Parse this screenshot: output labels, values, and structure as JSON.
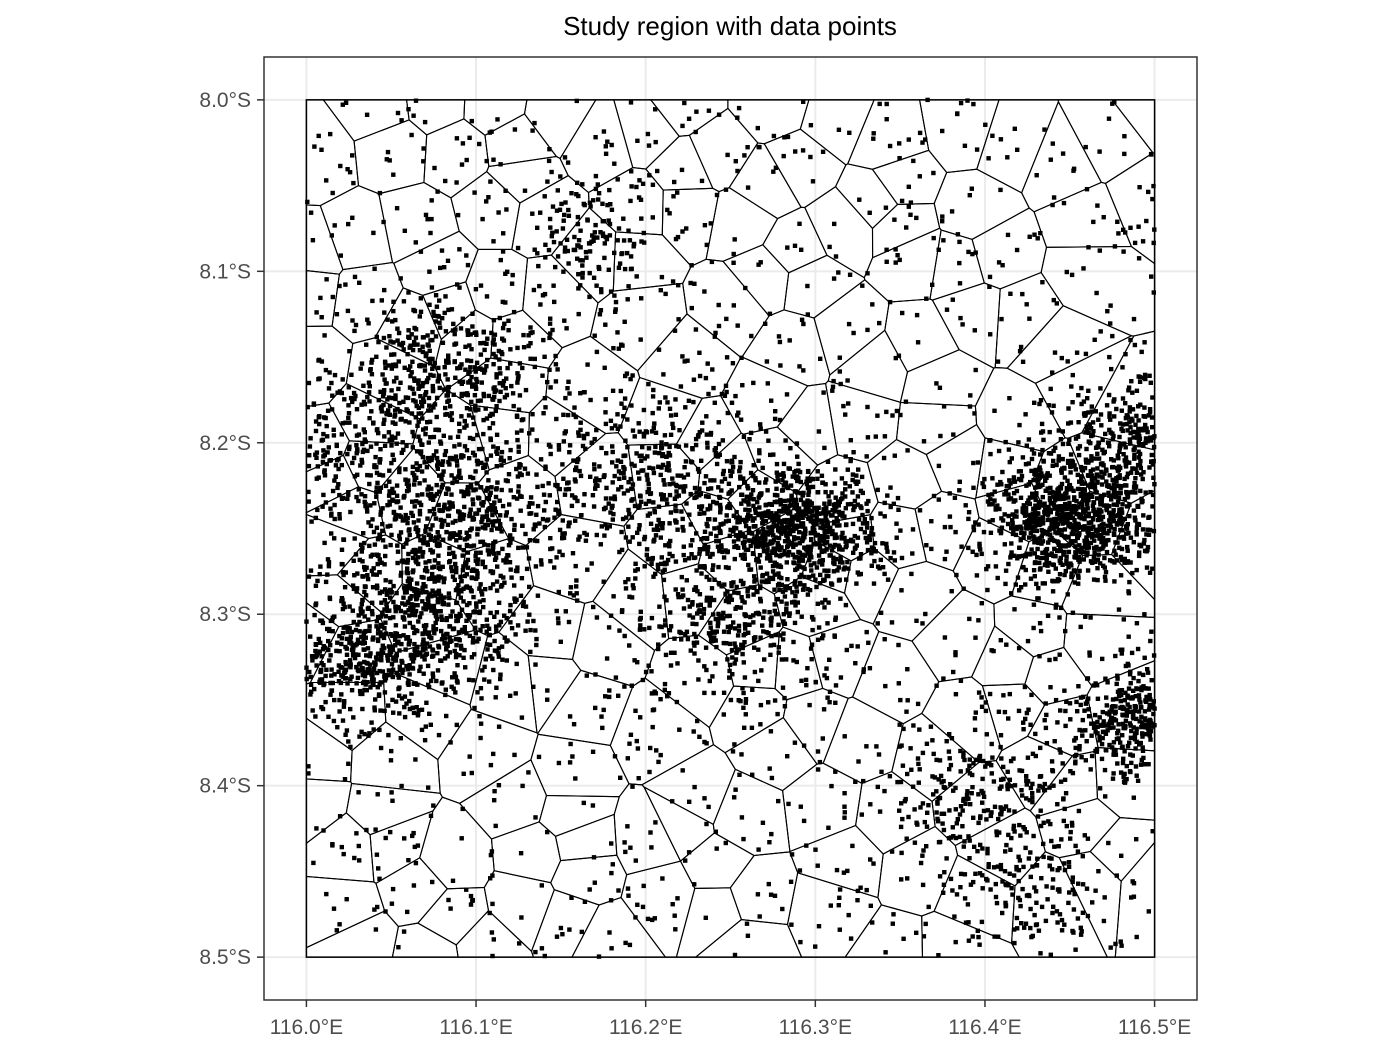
{
  "chart_data": {
    "type": "scatter",
    "title": "Study region with data points",
    "xlabel": "",
    "ylabel": "",
    "xlim": [
      115.975,
      116.525
    ],
    "ylim": [
      -8.525,
      -7.975
    ],
    "x_ticks": [
      116.0,
      116.1,
      116.2,
      116.3,
      116.4,
      116.5
    ],
    "x_tick_labels": [
      "116.0°E",
      "116.1°E",
      "116.2°E",
      "116.3°E",
      "116.4°E",
      "116.5°E"
    ],
    "y_ticks": [
      -8.0,
      -8.1,
      -8.2,
      -8.3,
      -8.4,
      -8.5
    ],
    "y_tick_labels": [
      "8.0°S",
      "8.1°S",
      "8.2°S",
      "8.3°S",
      "8.4°S",
      "8.5°S"
    ],
    "grid": true,
    "study_region": {
      "lon": [
        116.0,
        116.5
      ],
      "lat": [
        -8.5,
        -8.0
      ]
    },
    "overlay": "voronoi tessellation of study region",
    "point_density_clusters": [
      {
        "lon": 116.29,
        "lat": -8.25,
        "weight": 6
      },
      {
        "lon": 116.45,
        "lat": -8.245,
        "weight": 7
      },
      {
        "lon": 116.085,
        "lat": -8.16,
        "weight": 3
      },
      {
        "lon": 116.07,
        "lat": -8.3,
        "weight": 5
      },
      {
        "lon": 116.09,
        "lat": -8.235,
        "weight": 4
      },
      {
        "lon": 116.49,
        "lat": -8.2,
        "weight": 3
      },
      {
        "lon": 116.49,
        "lat": -8.36,
        "weight": 3
      },
      {
        "lon": 116.2,
        "lat": -8.22,
        "weight": 3
      },
      {
        "lon": 116.4,
        "lat": -8.4,
        "weight": 2
      },
      {
        "lon": 116.02,
        "lat": -8.2,
        "weight": 2
      },
      {
        "lon": 116.25,
        "lat": -8.3,
        "weight": 3
      },
      {
        "lon": 116.03,
        "lat": -8.33,
        "weight": 2
      },
      {
        "lon": 116.17,
        "lat": -8.08,
        "weight": 1
      },
      {
        "lon": 116.43,
        "lat": -8.46,
        "weight": 1
      }
    ]
  }
}
